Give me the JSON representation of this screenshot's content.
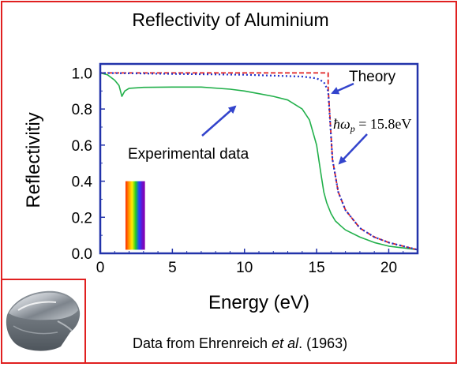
{
  "title": "Reflectivity of Aluminium",
  "footnote": {
    "prefix": "Data from Ehrenreich ",
    "italic": "et al",
    "suffix": ". (1963)"
  },
  "colors": {
    "frame": "#e02020",
    "axis": "#2233aa",
    "experimental": "#22b04b",
    "theory_red": "#e02020",
    "theory_blue": "#2233cc",
    "arrow": "#3344cc"
  },
  "annotations": {
    "theory": "Theory",
    "experimental": "Experimental data",
    "plasma": "ħω",
    "plasma_sub": "p",
    "plasma_value": " = 15.8eV"
  },
  "chart_data": {
    "type": "line",
    "xlabel": "Energy (eV)",
    "ylabel": "Reflectivitiy",
    "xlim": [
      0,
      22
    ],
    "ylim": [
      0,
      1.05
    ],
    "xticks": [
      0,
      5,
      10,
      15,
      20
    ],
    "yticks": [
      "0.0",
      "0.2",
      "0.4",
      "0.6",
      "0.8",
      "1.0"
    ],
    "series": [
      {
        "name": "Experimental data",
        "x": [
          0,
          0.5,
          1.0,
          1.3,
          1.5,
          1.7,
          2.0,
          3,
          5,
          7,
          9,
          10,
          11,
          12,
          13,
          14,
          14.5,
          15.0,
          15.3,
          15.5,
          15.7,
          16.0,
          16.3,
          16.7,
          17,
          18,
          19,
          20,
          21,
          22
        ],
        "y": [
          1.0,
          0.99,
          0.96,
          0.93,
          0.87,
          0.9,
          0.915,
          0.92,
          0.922,
          0.922,
          0.91,
          0.9,
          0.885,
          0.87,
          0.85,
          0.8,
          0.74,
          0.6,
          0.44,
          0.34,
          0.28,
          0.22,
          0.18,
          0.15,
          0.13,
          0.09,
          0.06,
          0.04,
          0.03,
          0.02
        ]
      },
      {
        "name": "Theory (red)",
        "x": [
          0,
          15.8,
          15.8,
          16.1,
          16.5,
          17,
          18,
          19,
          20,
          21,
          22
        ],
        "y": [
          1.0,
          1.0,
          0.92,
          0.52,
          0.34,
          0.24,
          0.14,
          0.09,
          0.06,
          0.04,
          0.02
        ]
      },
      {
        "name": "Theory (blue)",
        "x": [
          0,
          5,
          10,
          14,
          15,
          15.5,
          15.8,
          16.1,
          16.5,
          17,
          18,
          19,
          20,
          21,
          22
        ],
        "y": [
          1.0,
          0.995,
          0.99,
          0.98,
          0.97,
          0.95,
          0.9,
          0.52,
          0.34,
          0.24,
          0.14,
          0.09,
          0.06,
          0.04,
          0.02
        ]
      }
    ],
    "spectrum_band": {
      "x_range": [
        1.75,
        3.1
      ],
      "y_range": [
        0.02,
        0.4
      ]
    }
  }
}
